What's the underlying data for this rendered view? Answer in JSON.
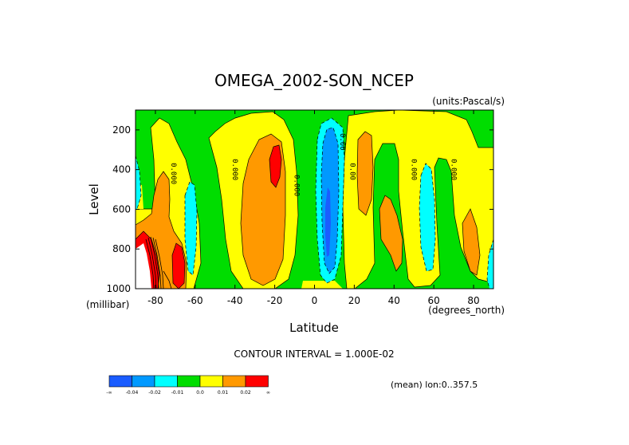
{
  "chart_data": {
    "type": "contour",
    "title": "OMEGA_2002-SON_NCEP",
    "units_label": "(units:Pascal/s)",
    "xlabel": "Latitude",
    "xunit": "(degrees_north)",
    "ylabel": "Level",
    "yunit": "(millibar)",
    "xlim": [
      -90,
      90
    ],
    "ylim": [
      1000,
      100
    ],
    "x_ticks": [
      -80,
      -60,
      -40,
      -20,
      0,
      20,
      40,
      60,
      80
    ],
    "x_tick_labels": [
      "-80",
      "-60",
      "-40",
      "-20",
      "0",
      "20",
      "40",
      "60",
      "80"
    ],
    "y_ticks": [
      200,
      400,
      600,
      800,
      1000
    ],
    "y_tick_labels": [
      "200",
      "400",
      "600",
      "800",
      "1000"
    ],
    "contour_interval_text": "CONTOUR INTERVAL = 1.000E-02",
    "mean_text": "(mean) lon:0..357.5",
    "contour_labels": [
      {
        "text": "0.000",
        "lat": -72,
        "level": 420
      },
      {
        "text": "0.000",
        "lat": -41,
        "level": 400
      },
      {
        "text": "0.000",
        "lat": -10,
        "level": 480
      },
      {
        "text": "0.00",
        "lat": 13,
        "level": 260
      },
      {
        "text": "0.00",
        "lat": 18,
        "level": 410
      },
      {
        "text": "0.000",
        "lat": 49,
        "level": 400
      },
      {
        "text": "0.000",
        "lat": 69,
        "level": 400
      }
    ],
    "levels": [
      -0.04,
      -0.02,
      -0.01,
      0.0,
      0.01,
      0.02
    ],
    "colorbar": {
      "colors": [
        "#1a5cff",
        "#0099ff",
        "#00ffff",
        "#00dd00",
        "#ffff00",
        "#ff9900",
        "#ff0000"
      ],
      "labels": [
        "-∞",
        "-0.04",
        "-0.02",
        "-0.01",
        "0.0",
        "0.01",
        "0.02",
        "∞"
      ]
    },
    "field_colors": {
      "green": "#00dd00",
      "yellow": "#ffff00",
      "orange": "#ff9900",
      "red": "#ff0000",
      "cyan": "#00ffff",
      "blue": "#0099ff",
      "darkblue": "#1a5cff",
      "white": "#ffffff"
    }
  }
}
